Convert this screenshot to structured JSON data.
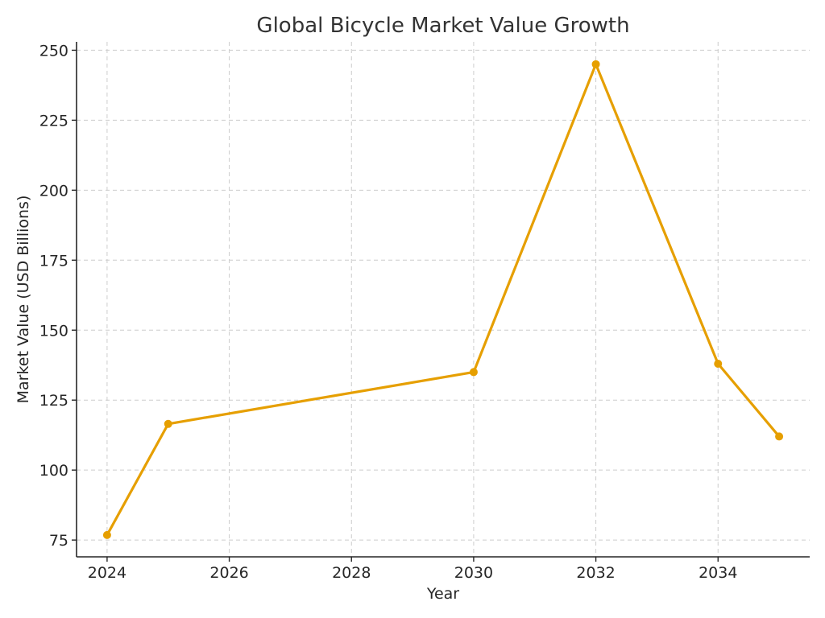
{
  "chart_data": {
    "type": "line",
    "title": "Global Bicycle Market Value Growth",
    "xlabel": "Year",
    "ylabel": "Market Value (USD Billions)",
    "xlim": [
      2023.5,
      2035.5
    ],
    "ylim": [
      69,
      253
    ],
    "x_ticks": [
      2024,
      2026,
      2028,
      2030,
      2032,
      2034
    ],
    "y_ticks": [
      75,
      100,
      125,
      150,
      175,
      200,
      225,
      250
    ],
    "grid": true,
    "series": [
      {
        "color": "#E69F00",
        "x": [
          2024,
          2025,
          2030,
          2032,
          2034,
          2035
        ],
        "y": [
          76.8,
          116.5,
          135.0,
          245.0,
          138.0,
          112.0
        ]
      }
    ]
  }
}
